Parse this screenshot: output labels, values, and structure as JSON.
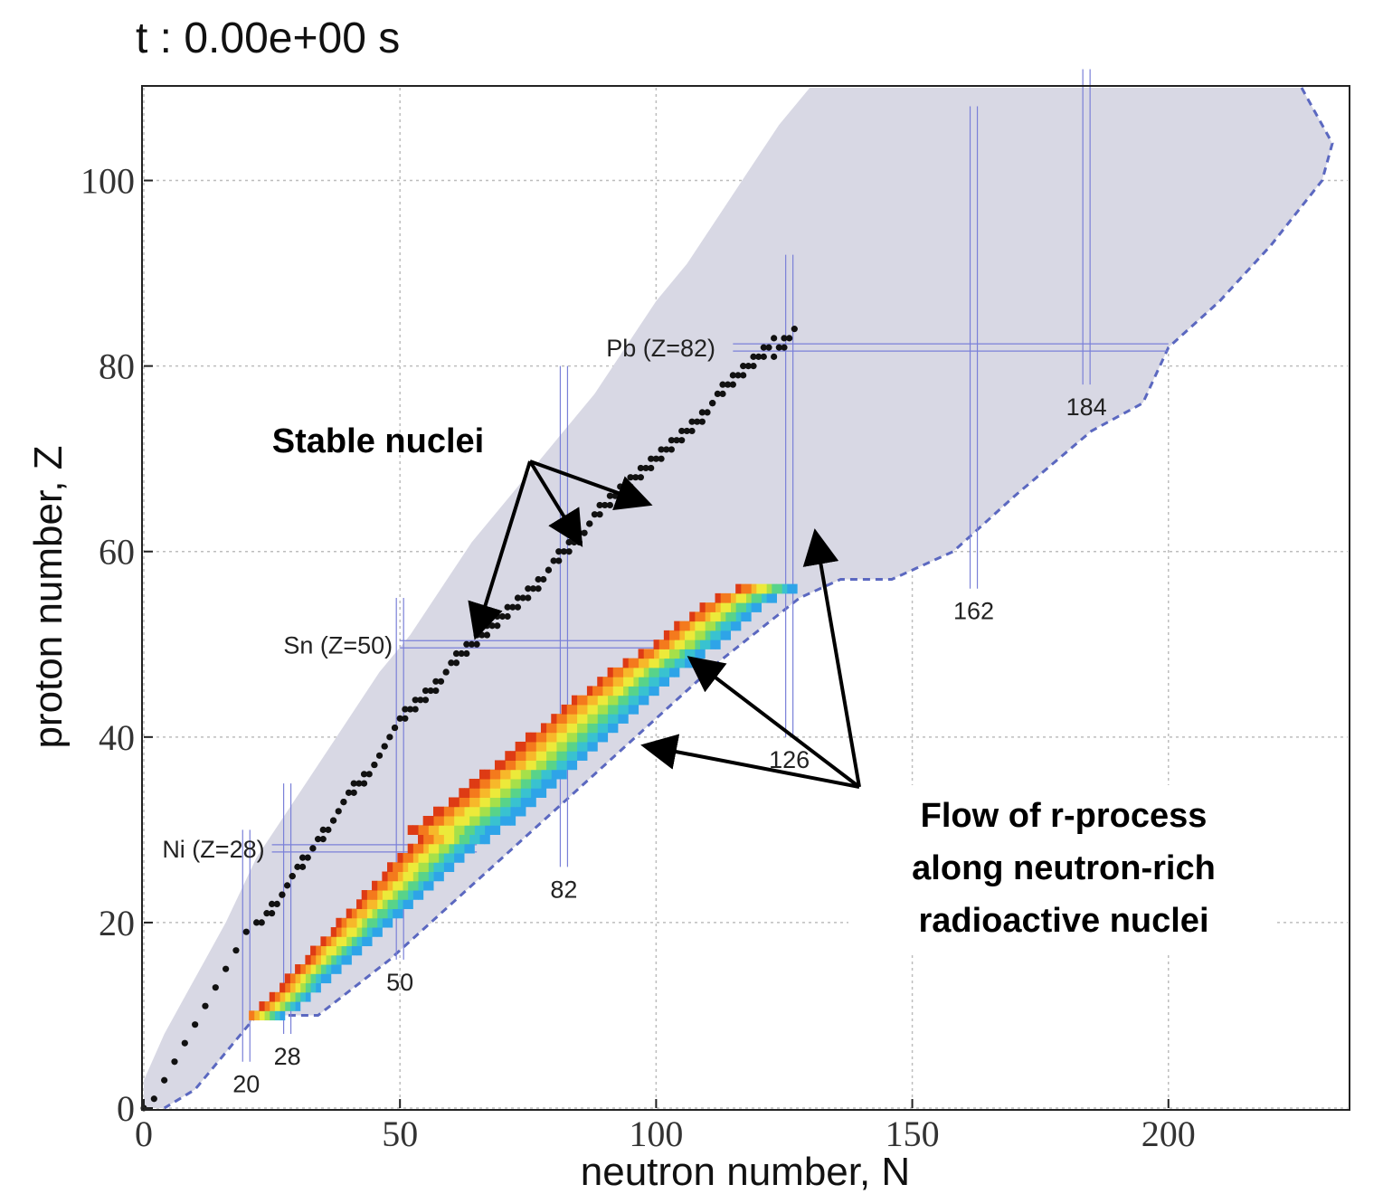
{
  "chart_data": {
    "type": "scatter",
    "title": "t : 0.00e+00 s",
    "xlabel": "neutron number, N",
    "ylabel": "proton number, Z",
    "xlim": [
      0,
      235
    ],
    "ylim": [
      0,
      110
    ],
    "xticks": [
      0,
      50,
      100,
      150,
      200
    ],
    "yticks": [
      0,
      20,
      40,
      60,
      80,
      100
    ],
    "grid": true,
    "region_color": "#d8d8e4",
    "magic_line_color": "#7a80d8",
    "magic_proton_labels": [
      {
        "label": "Ni (Z=28)",
        "z": 28
      },
      {
        "label": "Sn (Z=50)",
        "z": 50
      },
      {
        "label": "Pb (Z=82)",
        "z": 82
      }
    ],
    "magic_neutron_labels": [
      {
        "label": "20",
        "n": 20
      },
      {
        "label": "28",
        "n": 28
      },
      {
        "label": "50",
        "n": 50
      },
      {
        "label": "82",
        "n": 82
      },
      {
        "label": "126",
        "n": 126
      },
      {
        "label": "162",
        "n": 162
      },
      {
        "label": "184",
        "n": 184
      }
    ],
    "stable_valley": [
      [
        0,
        0
      ],
      [
        2,
        1
      ],
      [
        4,
        3
      ],
      [
        6,
        5
      ],
      [
        8,
        7
      ],
      [
        10,
        9
      ],
      [
        12,
        11
      ],
      [
        14,
        13
      ],
      [
        16,
        15
      ],
      [
        18,
        17
      ],
      [
        20,
        19
      ],
      [
        22,
        20
      ],
      [
        24,
        21
      ],
      [
        26,
        22
      ],
      [
        28,
        24
      ],
      [
        30,
        26
      ],
      [
        32,
        27
      ],
      [
        34,
        29
      ],
      [
        36,
        30
      ],
      [
        38,
        32
      ],
      [
        40,
        34
      ],
      [
        42,
        35
      ],
      [
        44,
        36
      ],
      [
        46,
        38
      ],
      [
        48,
        40
      ],
      [
        50,
        42
      ],
      [
        52,
        43
      ],
      [
        54,
        44
      ],
      [
        56,
        45
      ],
      [
        58,
        46
      ],
      [
        60,
        48
      ],
      [
        62,
        49
      ],
      [
        64,
        50
      ],
      [
        66,
        51
      ],
      [
        68,
        52
      ],
      [
        70,
        53
      ],
      [
        72,
        54
      ],
      [
        74,
        55
      ],
      [
        76,
        56
      ],
      [
        78,
        57
      ],
      [
        80,
        59
      ],
      [
        82,
        60
      ],
      [
        84,
        61
      ],
      [
        86,
        62
      ],
      [
        88,
        64
      ],
      [
        90,
        65
      ],
      [
        92,
        66
      ],
      [
        94,
        67
      ],
      [
        96,
        68
      ],
      [
        98,
        69
      ],
      [
        100,
        70
      ],
      [
        102,
        71
      ],
      [
        104,
        72
      ],
      [
        106,
        73
      ],
      [
        108,
        74
      ],
      [
        110,
        75
      ],
      [
        112,
        77
      ],
      [
        114,
        78
      ],
      [
        116,
        79
      ],
      [
        118,
        80
      ],
      [
        120,
        81
      ],
      [
        122,
        82
      ],
      [
        124,
        82
      ],
      [
        126,
        83
      ]
    ],
    "rprocess_path": [
      [
        27,
        10
      ],
      [
        32,
        12
      ],
      [
        40,
        16
      ],
      [
        48,
        20
      ],
      [
        56,
        24
      ],
      [
        64,
        28
      ],
      [
        72,
        31
      ],
      [
        80,
        35
      ],
      [
        88,
        39
      ],
      [
        96,
        43
      ],
      [
        104,
        47
      ],
      [
        112,
        50
      ],
      [
        120,
        54
      ],
      [
        130,
        57
      ]
    ],
    "annotations": [
      {
        "text": "Stable nuclei"
      },
      {
        "lines": [
          "Flow of r-process",
          "along neutron-rich",
          "radioactive nuclei"
        ]
      }
    ]
  }
}
